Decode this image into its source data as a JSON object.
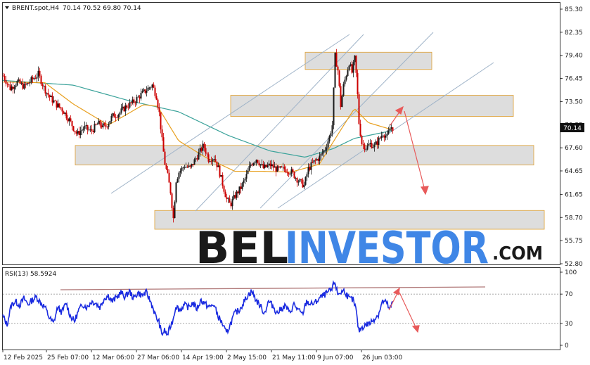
{
  "header": {
    "symbol": "BRENT.spot,H4",
    "ohlc": "70.14 70.52 69.80 70.14"
  },
  "rsi_header": "RSI(13) 58.5924",
  "watermark": {
    "bel": "BEL",
    "investor": "INVESTOR",
    "com": ".COM",
    "color_dark": "#1a1a1a",
    "color_blue": "#3f86e6"
  },
  "colors": {
    "bull": "#1a1a1a",
    "bear": "#cc0000",
    "ma_fast": "#e8a020",
    "ma_slow": "#3aa29a",
    "rsi_line": "#1a2be0",
    "zone_fill": "#d9d9d9",
    "zone_stroke": "#e0a030",
    "trend": "#9fb3c8",
    "arrow": "#e85a5a",
    "rsi_resistance": "#b07878"
  },
  "chart_data": [
    {
      "type": "candlestick",
      "y_ticks": [
        "85.30",
        "82.35",
        "79.40",
        "76.45",
        "73.50",
        "70.55",
        "67.60",
        "64.65",
        "61.65",
        "58.70",
        "55.75",
        "52.80"
      ],
      "y_range": [
        52.8,
        85.3
      ],
      "current_price": "70.14",
      "x_ticks": [
        "12 Feb 2025",
        "25 Feb 07:00",
        "12 Mar 06:00",
        "27 Mar 06:00",
        "14 Apr 19:00",
        "2 May 15:00",
        "21 May 11:00",
        "9 Jun 07:00",
        "26 Jun 03:00"
      ],
      "price_path": [
        [
          0,
          76.8
        ],
        [
          10,
          75.2
        ],
        [
          20,
          76.0
        ],
        [
          30,
          75.4
        ],
        [
          40,
          76.2
        ],
        [
          50,
          77.0
        ],
        [
          58,
          75.3
        ],
        [
          65,
          74.2
        ],
        [
          75,
          73.2
        ],
        [
          85,
          72.4
        ],
        [
          95,
          71.0
        ],
        [
          105,
          69.3
        ],
        [
          115,
          70.2
        ],
        [
          125,
          69.7
        ],
        [
          135,
          70.7
        ],
        [
          145,
          70.2
        ],
        [
          155,
          71.6
        ],
        [
          165,
          72.0
        ],
        [
          175,
          72.9
        ],
        [
          185,
          73.4
        ],
        [
          195,
          74.3
        ],
        [
          205,
          75.1
        ],
        [
          212,
          75.6
        ],
        [
          218,
          74.2
        ],
        [
          222,
          72.0
        ],
        [
          226,
          68.5
        ],
        [
          230,
          65.6
        ],
        [
          234,
          64.0
        ],
        [
          238,
          62.0
        ],
        [
          242,
          58.6
        ],
        [
          246,
          63.5
        ],
        [
          250,
          64.5
        ],
        [
          258,
          65.3
        ],
        [
          266,
          65.0
        ],
        [
          275,
          66.4
        ],
        [
          285,
          67.9
        ],
        [
          292,
          66.2
        ],
        [
          300,
          66.4
        ],
        [
          306,
          65.0
        ],
        [
          312,
          63.0
        ],
        [
          318,
          61.0
        ],
        [
          323,
          60.3
        ],
        [
          330,
          61.5
        ],
        [
          338,
          62.5
        ],
        [
          345,
          63.8
        ],
        [
          352,
          65.5
        ],
        [
          360,
          66.2
        ],
        [
          370,
          65.0
        ],
        [
          380,
          65.4
        ],
        [
          390,
          64.8
        ],
        [
          400,
          64.9
        ],
        [
          410,
          64.5
        ],
        [
          420,
          63.4
        ],
        [
          428,
          62.8
        ],
        [
          434,
          64.9
        ],
        [
          442,
          65.8
        ],
        [
          450,
          66.4
        ],
        [
          458,
          67.5
        ],
        [
          464,
          69.0
        ],
        [
          468,
          70.5
        ],
        [
          472,
          79.3
        ],
        [
          476,
          77.5
        ],
        [
          480,
          73.0
        ],
        [
          484,
          75.5
        ],
        [
          488,
          77.0
        ],
        [
          492,
          78.5
        ],
        [
          496,
          77.2
        ],
        [
          500,
          79.0
        ],
        [
          503,
          76.0
        ],
        [
          506,
          70.8
        ],
        [
          510,
          68.2
        ],
        [
          516,
          67.6
        ],
        [
          522,
          68.1
        ],
        [
          528,
          67.8
        ],
        [
          534,
          68.6
        ],
        [
          540,
          69.5
        ],
        [
          546,
          69.0
        ],
        [
          551,
          70.3
        ],
        [
          554,
          70.14
        ]
      ],
      "ma_fast_path": [
        [
          0,
          76.0
        ],
        [
          60,
          75.9
        ],
        [
          100,
          73.2
        ],
        [
          150,
          70.5
        ],
        [
          200,
          73.1
        ],
        [
          220,
          72.9
        ],
        [
          250,
          68.5
        ],
        [
          290,
          66.3
        ],
        [
          330,
          64.6
        ],
        [
          370,
          64.6
        ],
        [
          410,
          64.5
        ],
        [
          450,
          65.5
        ],
        [
          480,
          69.8
        ],
        [
          500,
          72.6
        ],
        [
          520,
          70.8
        ],
        [
          554,
          69.9
        ]
      ],
      "ma_slow_path": [
        [
          0,
          76.2
        ],
        [
          100,
          75.6
        ],
        [
          180,
          73.6
        ],
        [
          250,
          72.2
        ],
        [
          320,
          69.2
        ],
        [
          380,
          67.2
        ],
        [
          430,
          66.4
        ],
        [
          470,
          67.5
        ],
        [
          500,
          68.8
        ],
        [
          554,
          69.8
        ]
      ],
      "zones": [
        {
          "price_top": 79.8,
          "price_bottom": 77.6
        },
        {
          "price_top": 74.3,
          "price_bottom": 71.6
        },
        {
          "price_top": 67.9,
          "price_bottom": 65.4
        },
        {
          "price_top": 59.6,
          "price_bottom": 57.2
        }
      ]
    },
    {
      "type": "line",
      "title": "RSI(13) 58.5924",
      "y_ticks": [
        "100",
        "70",
        "30",
        "0"
      ],
      "y_range": [
        0,
        100
      ],
      "resistance_level": 79,
      "rsi_path": [
        [
          0,
          40
        ],
        [
          6,
          28
        ],
        [
          12,
          55
        ],
        [
          18,
          60
        ],
        [
          24,
          55
        ],
        [
          30,
          64
        ],
        [
          36,
          56
        ],
        [
          42,
          62
        ],
        [
          48,
          66
        ],
        [
          54,
          58
        ],
        [
          60,
          52
        ],
        [
          66,
          38
        ],
        [
          72,
          30
        ],
        [
          78,
          52
        ],
        [
          84,
          45
        ],
        [
          90,
          58
        ],
        [
          96,
          40
        ],
        [
          102,
          33
        ],
        [
          108,
          48
        ],
        [
          114,
          56
        ],
        [
          120,
          52
        ],
        [
          126,
          60
        ],
        [
          132,
          58
        ],
        [
          138,
          52
        ],
        [
          144,
          64
        ],
        [
          150,
          68
        ],
        [
          156,
          60
        ],
        [
          162,
          66
        ],
        [
          168,
          72
        ],
        [
          174,
          66
        ],
        [
          180,
          74
        ],
        [
          186,
          64
        ],
        [
          192,
          72
        ],
        [
          198,
          68
        ],
        [
          204,
          72
        ],
        [
          210,
          60
        ],
        [
          214,
          50
        ],
        [
          218,
          38
        ],
        [
          222,
          32
        ],
        [
          226,
          15
        ],
        [
          230,
          20
        ],
        [
          234,
          14
        ],
        [
          238,
          25
        ],
        [
          242,
          35
        ],
        [
          246,
          54
        ],
        [
          252,
          48
        ],
        [
          258,
          55
        ],
        [
          264,
          52
        ],
        [
          270,
          58
        ],
        [
          276,
          50
        ],
        [
          282,
          62
        ],
        [
          288,
          56
        ],
        [
          294,
          52
        ],
        [
          300,
          56
        ],
        [
          306,
          40
        ],
        [
          312,
          30
        ],
        [
          318,
          16
        ],
        [
          324,
          30
        ],
        [
          330,
          44
        ],
        [
          336,
          48
        ],
        [
          342,
          58
        ],
        [
          348,
          68
        ],
        [
          354,
          74
        ],
        [
          360,
          62
        ],
        [
          366,
          54
        ],
        [
          372,
          44
        ],
        [
          378,
          60
        ],
        [
          384,
          54
        ],
        [
          390,
          44
        ],
        [
          396,
          50
        ],
        [
          402,
          54
        ],
        [
          408,
          44
        ],
        [
          414,
          56
        ],
        [
          420,
          48
        ],
        [
          426,
          42
        ],
        [
          432,
          60
        ],
        [
          438,
          56
        ],
        [
          444,
          58
        ],
        [
          450,
          64
        ],
        [
          456,
          68
        ],
        [
          462,
          72
        ],
        [
          468,
          76
        ],
        [
          472,
          88
        ],
        [
          476,
          70
        ],
        [
          480,
          72
        ],
        [
          486,
          75
        ],
        [
          492,
          64
        ],
        [
          498,
          62
        ],
        [
          502,
          50
        ],
        [
          506,
          20
        ],
        [
          510,
          24
        ],
        [
          516,
          28
        ],
        [
          522,
          30
        ],
        [
          528,
          36
        ],
        [
          534,
          42
        ],
        [
          540,
          60
        ],
        [
          546,
          58
        ],
        [
          550,
          48
        ],
        [
          554,
          58
        ]
      ]
    }
  ]
}
